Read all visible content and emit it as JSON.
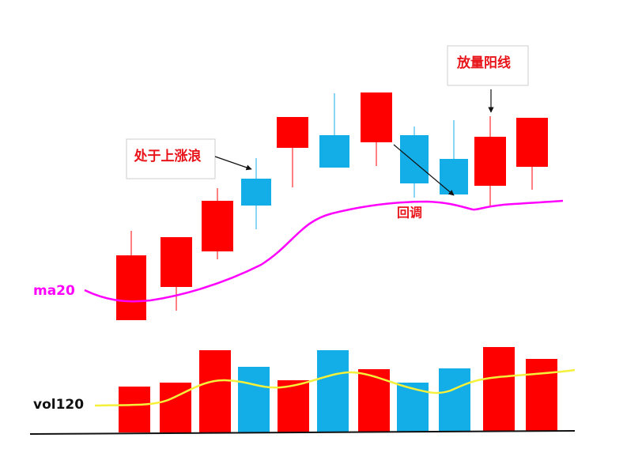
{
  "annotations": {
    "volume_candle": "放量阳线",
    "uptrend": "处于上涨浪",
    "pullback": "回调"
  },
  "labels": {
    "ma": "ma20",
    "vol": "vol120"
  }
}
